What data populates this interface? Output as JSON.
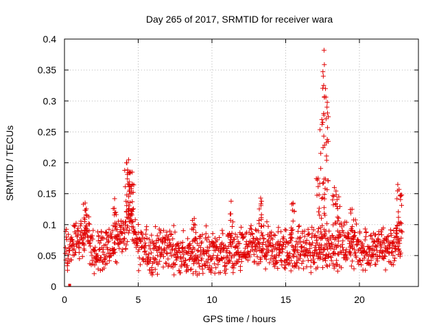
{
  "chart_data": {
    "type": "scatter",
    "title": "Day 265 of 2017, SRMTID for receiver wara",
    "xlabel": "GPS time / hours",
    "ylabel": "SRMTID / TECUs",
    "xlim": [
      0,
      24
    ],
    "ylim": [
      0,
      0.4
    ],
    "xticks": [
      0,
      5,
      10,
      15,
      20
    ],
    "yticks": [
      0,
      0.05,
      0.1,
      0.15,
      0.2,
      0.25,
      0.3,
      0.35,
      0.4
    ],
    "xtick_labels": [
      "0",
      "5",
      "10",
      "15",
      "20"
    ],
    "ytick_labels": [
      "0",
      "0.05",
      "0.1",
      "0.15",
      "0.2",
      "0.25",
      "0.3",
      "0.35",
      "0.4"
    ],
    "grid": true,
    "marker": "+",
    "color": "#e00000",
    "series": [
      {
        "name": "SRMTID",
        "baseline": [
          {
            "x": 0.0,
            "y": 0.06
          },
          {
            "x": 1.0,
            "y": 0.075
          },
          {
            "x": 1.5,
            "y": 0.09
          },
          {
            "x": 2.0,
            "y": 0.055
          },
          {
            "x": 3.0,
            "y": 0.058
          },
          {
            "x": 4.0,
            "y": 0.09
          },
          {
            "x": 4.5,
            "y": 0.11
          },
          {
            "x": 5.0,
            "y": 0.06
          },
          {
            "x": 6.0,
            "y": 0.055
          },
          {
            "x": 7.0,
            "y": 0.065
          },
          {
            "x": 8.0,
            "y": 0.048
          },
          {
            "x": 9.0,
            "y": 0.052
          },
          {
            "x": 10.0,
            "y": 0.055
          },
          {
            "x": 11.0,
            "y": 0.052
          },
          {
            "x": 12.0,
            "y": 0.058
          },
          {
            "x": 13.0,
            "y": 0.062
          },
          {
            "x": 14.0,
            "y": 0.06
          },
          {
            "x": 15.0,
            "y": 0.058
          },
          {
            "x": 16.0,
            "y": 0.062
          },
          {
            "x": 17.0,
            "y": 0.06
          },
          {
            "x": 18.0,
            "y": 0.065
          },
          {
            "x": 19.0,
            "y": 0.07
          },
          {
            "x": 20.0,
            "y": 0.062
          },
          {
            "x": 21.0,
            "y": 0.06
          },
          {
            "x": 22.0,
            "y": 0.065
          },
          {
            "x": 23.0,
            "y": 0.07
          }
        ],
        "peaks": [
          {
            "x": 1.4,
            "y": 0.135
          },
          {
            "x": 3.4,
            "y": 0.142
          },
          {
            "x": 4.2,
            "y": 0.2
          },
          {
            "x": 4.35,
            "y": 0.205
          },
          {
            "x": 4.5,
            "y": 0.185
          },
          {
            "x": 4.6,
            "y": 0.165
          },
          {
            "x": 8.8,
            "y": 0.11
          },
          {
            "x": 11.3,
            "y": 0.138
          },
          {
            "x": 13.3,
            "y": 0.143
          },
          {
            "x": 15.5,
            "y": 0.135
          },
          {
            "x": 17.2,
            "y": 0.175
          },
          {
            "x": 17.45,
            "y": 0.27
          },
          {
            "x": 17.55,
            "y": 0.34
          },
          {
            "x": 17.6,
            "y": 0.382
          },
          {
            "x": 17.7,
            "y": 0.32
          },
          {
            "x": 17.8,
            "y": 0.29
          },
          {
            "x": 18.3,
            "y": 0.16
          },
          {
            "x": 18.6,
            "y": 0.145
          },
          {
            "x": 19.5,
            "y": 0.125
          },
          {
            "x": 22.6,
            "y": 0.165
          },
          {
            "x": 22.8,
            "y": 0.148
          }
        ],
        "outliers": [
          {
            "x": 0.35,
            "y": 0.0
          }
        ]
      }
    ]
  }
}
